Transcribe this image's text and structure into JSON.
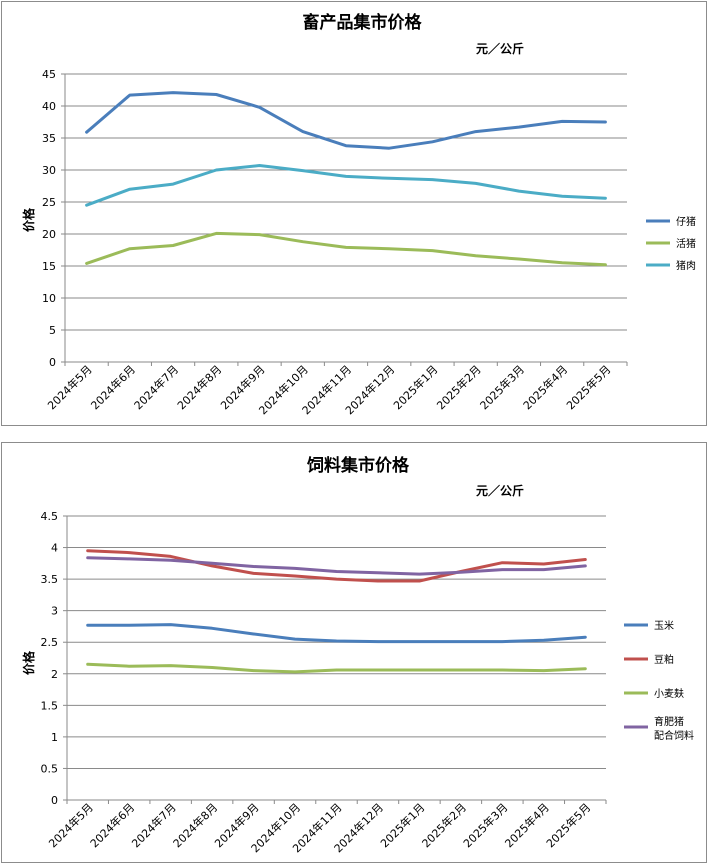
{
  "chart_data": [
    {
      "type": "line",
      "title": "畜产品集市价格",
      "unit": "元／公斤",
      "ylabel": "价格",
      "xlabel": "",
      "ylim": [
        0,
        45
      ],
      "yticks": [
        "0",
        "5",
        "10",
        "15",
        "20",
        "25",
        "30",
        "35",
        "40",
        "45"
      ],
      "grid": true,
      "legend": "right",
      "categories": [
        "2024年5月",
        "2024年6月",
        "2024年7月",
        "2024年8月",
        "2024年9月",
        "2024年10月",
        "2024年11月",
        "2024年12月",
        "2025年1月",
        "2025年2月",
        "2025年3月",
        "2025年4月",
        "2025年5月"
      ],
      "series": [
        {
          "name": "仔猪",
          "color": "#4a7ebb",
          "values": [
            35.9,
            41.7,
            42.1,
            41.8,
            39.8,
            36.0,
            33.8,
            33.4,
            34.4,
            36.0,
            36.7,
            37.6,
            37.5
          ]
        },
        {
          "name": "活猪",
          "color": "#9bbb59",
          "values": [
            15.4,
            17.7,
            18.2,
            20.1,
            19.9,
            18.8,
            17.9,
            17.7,
            17.4,
            16.6,
            16.1,
            15.5,
            15.2
          ]
        },
        {
          "name": "猪肉",
          "color": "#4bacc6",
          "values": [
            24.5,
            27.0,
            27.8,
            30.0,
            30.7,
            29.9,
            29.0,
            28.7,
            28.5,
            27.9,
            26.7,
            25.9,
            25.6
          ]
        }
      ]
    },
    {
      "type": "line",
      "title": "饲料集市价格",
      "unit": "元／公斤",
      "ylabel": "价格",
      "xlabel": "",
      "ylim": [
        0,
        4.5
      ],
      "yticks": [
        "0",
        "0.5",
        "1",
        "1.5",
        "2",
        "2.5",
        "3",
        "3.5",
        "4",
        "4.5"
      ],
      "grid": true,
      "legend": "right",
      "categories": [
        "2024年5月",
        "2024年6月",
        "2024年7月",
        "2024年8月",
        "2024年9月",
        "2024年10月",
        "2024年11月",
        "2024年12月",
        "2025年1月",
        "2025年2月",
        "2025年3月",
        "2025年4月",
        "2025年5月"
      ],
      "series": [
        {
          "name": "玉米",
          "color": "#4a7ebb",
          "values": [
            2.77,
            2.77,
            2.78,
            2.72,
            2.63,
            2.55,
            2.52,
            2.51,
            2.51,
            2.51,
            2.51,
            2.53,
            2.58
          ]
        },
        {
          "name": "豆粕",
          "color": "#c0504d",
          "values": [
            3.95,
            3.92,
            3.86,
            3.71,
            3.59,
            3.55,
            3.5,
            3.47,
            3.47,
            3.62,
            3.76,
            3.74,
            3.81
          ]
        },
        {
          "name": "小麦麸",
          "color": "#9bbb59",
          "values": [
            2.15,
            2.12,
            2.13,
            2.1,
            2.05,
            2.03,
            2.06,
            2.06,
            2.06,
            2.06,
            2.06,
            2.05,
            2.08
          ]
        },
        {
          "name": "育肥猪配合饲料",
          "label_lines": [
            "育肥猪",
            "配合饲料"
          ],
          "color": "#8064a2",
          "values": [
            3.84,
            3.82,
            3.8,
            3.75,
            3.7,
            3.67,
            3.62,
            3.6,
            3.58,
            3.61,
            3.65,
            3.65,
            3.71
          ]
        }
      ]
    }
  ]
}
